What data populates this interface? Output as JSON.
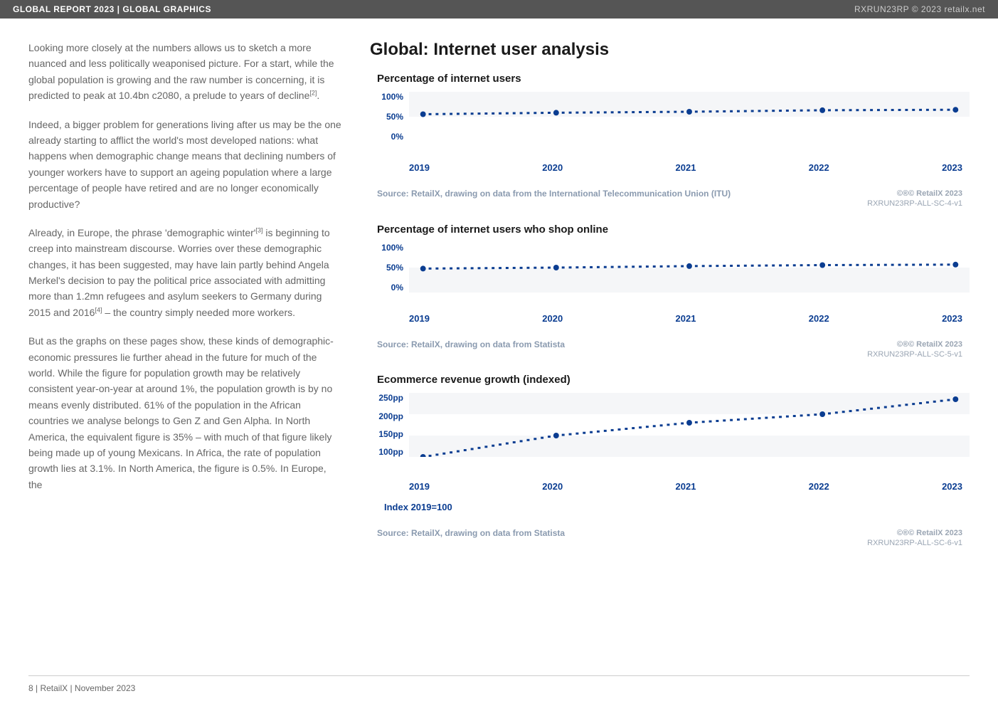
{
  "header": {
    "left": "GLOBAL REPORT 2023 | GLOBAL GRAPHICS",
    "right": "RXRUN23RP © 2023 retailx.net"
  },
  "body_text": {
    "p1": "Looking more closely at the numbers allows us to sketch a more nuanced and less politically weaponised picture. For a start, while the global population is growing and the raw number is concerning, it is predicted to peak at 10.4bn c2080, a prelude to years of decline",
    "p1_ref": "[2]",
    "p1_tail": ".",
    "p2": "Indeed, a bigger problem for generations living after us may be the one already starting to afflict the world's most developed nations: what happens when demographic change means that declining numbers of younger workers have to support an ageing population where a large percentage of people have retired and are no longer economically productive?",
    "p3a": "Already, in Europe, the phrase 'demographic winter'",
    "p3_ref": "[3]",
    "p3b": " is beginning to creep into mainstream discourse. Worries over these demographic changes, it has been suggested, may have lain partly behind Angela Merkel's decision to pay the political price associated with admitting more than 1.2mn refugees and asylum seekers to Germany during 2015 and 2016",
    "p3_ref2": "[4]",
    "p3c": " – the country simply needed more workers.",
    "p4": "But as the graphs on these pages show, these kinds of demographic-economic pressures lie further ahead in the future for much of the world. While the figure for population growth may be relatively consistent year-on-year at around 1%, the population growth is by no means evenly distributed. 61% of the population in the African countries we analyse belongs to Gen Z and Gen Alpha. In North America, the equivalent figure is 35% – with much of that figure likely being made up of young Mexicans. In Africa, the rate of population growth lies at 3.1%. In North America, the figure is 0.5%. In Europe, the"
  },
  "main_title": "Global: Internet user analysis",
  "chart1": {
    "title": "Percentage of internet users",
    "type": "line",
    "y_labels": [
      "100%",
      "50%",
      "0%"
    ],
    "x_labels": [
      "2019",
      "2020",
      "2021",
      "2022",
      "2023"
    ],
    "values": [
      55,
      58,
      60,
      63,
      64
    ],
    "ylim": [
      0,
      100
    ],
    "band_top_pct": 0,
    "band_height_pct": 50,
    "line_color": "#0b3d91",
    "marker_color": "#0b3d91",
    "background_band": "#f5f6f8",
    "source": "Source: RetailX, drawing on data from the International Telecommunication Union (ITU)",
    "attrib1": "©®© RetailX 2023",
    "attrib2": "RXRUN23RP-ALL-SC-4-v1"
  },
  "chart2": {
    "title": "Percentage of internet users who shop online",
    "type": "line",
    "y_labels": [
      "100%",
      "50%",
      "0%"
    ],
    "x_labels": [
      "2019",
      "2020",
      "2021",
      "2022",
      "2023"
    ],
    "values": [
      48,
      50,
      53,
      55,
      56
    ],
    "ylim": [
      0,
      100
    ],
    "band_top_pct": 50,
    "band_height_pct": 50,
    "line_color": "#0b3d91",
    "marker_color": "#0b3d91",
    "background_band": "#f5f6f8",
    "source": "Source: RetailX, drawing on data from Statista",
    "attrib1": "©®© RetailX 2023",
    "attrib2": "RXRUN23RP-ALL-SC-5-v1"
  },
  "chart3": {
    "title": "Ecommerce revenue growth (indexed)",
    "type": "line",
    "y_labels": [
      "250pp",
      "200pp",
      "150pp",
      "100pp"
    ],
    "x_labels": [
      "2019",
      "2020",
      "2021",
      "2022",
      "2023"
    ],
    "values": [
      100,
      150,
      180,
      200,
      235
    ],
    "ylim": [
      100,
      250
    ],
    "band1_top_pct": 0,
    "band1_height_pct": 33,
    "band2_top_pct": 66,
    "band2_height_pct": 34,
    "line_color": "#0b3d91",
    "marker_color": "#0b3d91",
    "background_band": "#f5f6f8",
    "index_note": "Index 2019=100",
    "source": "Source: RetailX, drawing on data from Statista",
    "attrib1": "©®© RetailX 2023",
    "attrib2": "RXRUN23RP-ALL-SC-6-v1"
  },
  "footer": "8 | RetailX | November 2023"
}
